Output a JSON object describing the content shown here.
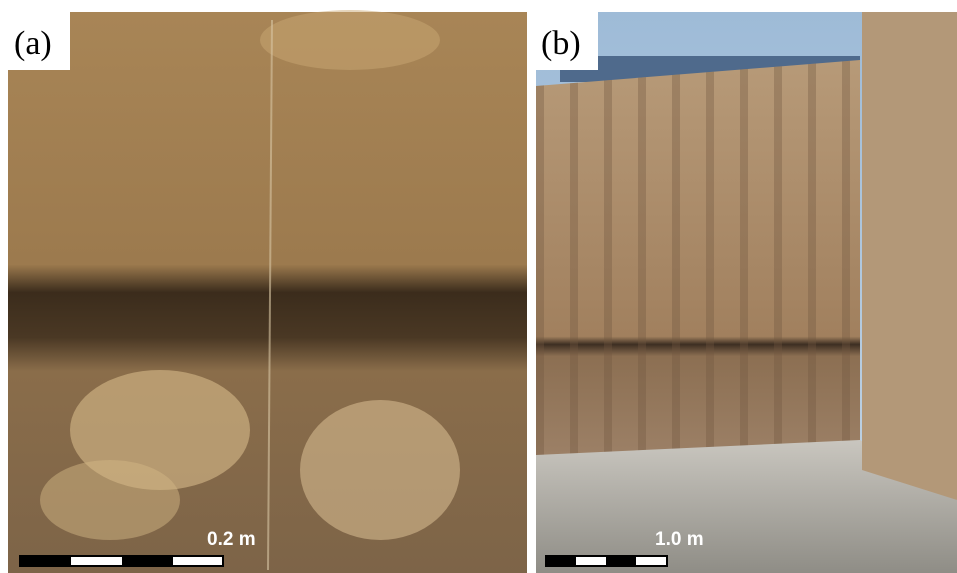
{
  "panels": [
    {
      "label": "(a)",
      "scale_label": "0.2 m"
    },
    {
      "label": "(b)",
      "scale_label": "1.0 m"
    }
  ]
}
